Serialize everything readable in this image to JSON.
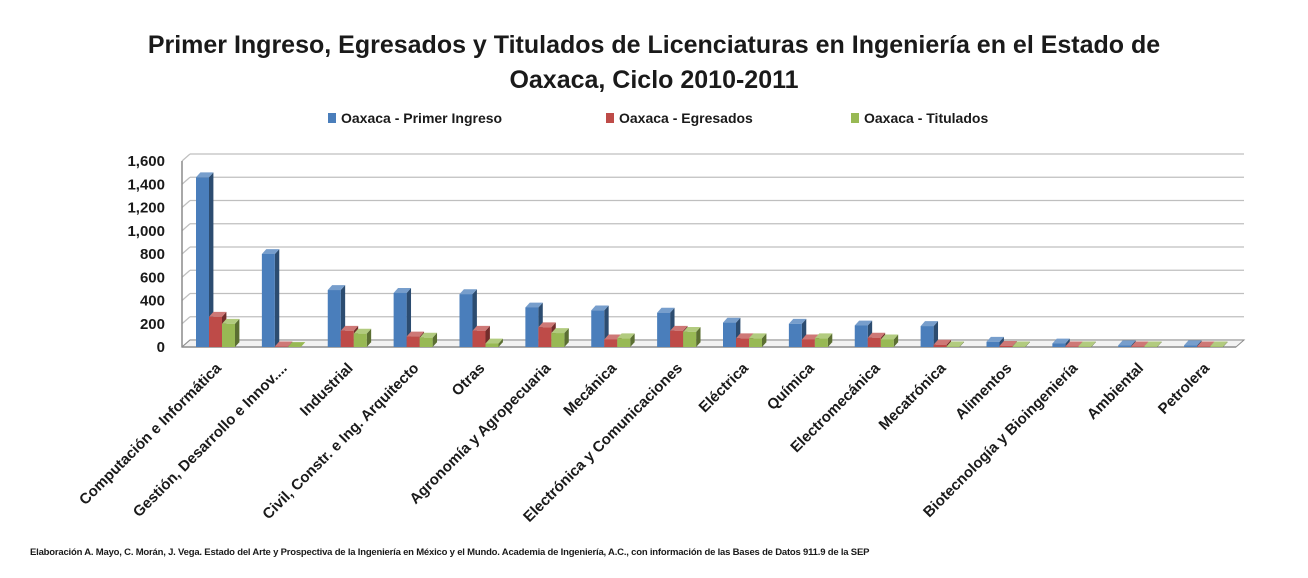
{
  "chart_data": {
    "type": "bar",
    "title_lines": [
      "Primer Ingreso, Egresados y Titulados de Licenciaturas en Ingeniería en el Estado de",
      "Oaxaca, Ciclo 2010-2011"
    ],
    "categories": [
      "Computación e Informática",
      "Gestión, Desarrollo e Innov....",
      "Industrial",
      "Civil, Constr. e Ing. Arquitecto",
      "Otras",
      "Agronomía y Agropecuaria",
      "Mecánica",
      "Electrónica y Comunicaciones",
      "Eléctrica",
      "Química",
      "Electromecánica",
      "Mecatrónica",
      "Alimentos",
      "Biotecnología y Bioingeniería",
      "Ambiental",
      "Petrolera"
    ],
    "series": [
      {
        "name": "Oaxaca - Primer Ingreso",
        "color": "#4a7ebb",
        "values": [
          1460,
          800,
          490,
          465,
          455,
          340,
          315,
          295,
          210,
          200,
          185,
          180,
          45,
          30,
          15,
          15
        ]
      },
      {
        "name": "Oaxaca - Egresados",
        "color": "#be4b48",
        "values": [
          260,
          5,
          140,
          90,
          140,
          170,
          65,
          140,
          75,
          65,
          80,
          20,
          10,
          5,
          5,
          5
        ]
      },
      {
        "name": "Oaxaca - Titulados",
        "color": "#98b954",
        "values": [
          200,
          0,
          115,
          80,
          30,
          120,
          75,
          130,
          75,
          75,
          65,
          5,
          5,
          5,
          5,
          5
        ]
      }
    ],
    "yticks": [
      "0",
      "200",
      "400",
      "600",
      "800",
      "1,000",
      "1,200",
      "1,400",
      "1,600"
    ],
    "ylim": [
      0,
      1600
    ],
    "grid": true,
    "legend_position": "top"
  },
  "footer": {
    "source": "Elaboración A. Mayo, C. Morán, J. Vega. Estado del Arte y Prospectiva de la Ingeniería en México y el Mundo. Academia de Ingeniería, A.C., con información de las Bases de Datos 911.9 de la SEP"
  }
}
